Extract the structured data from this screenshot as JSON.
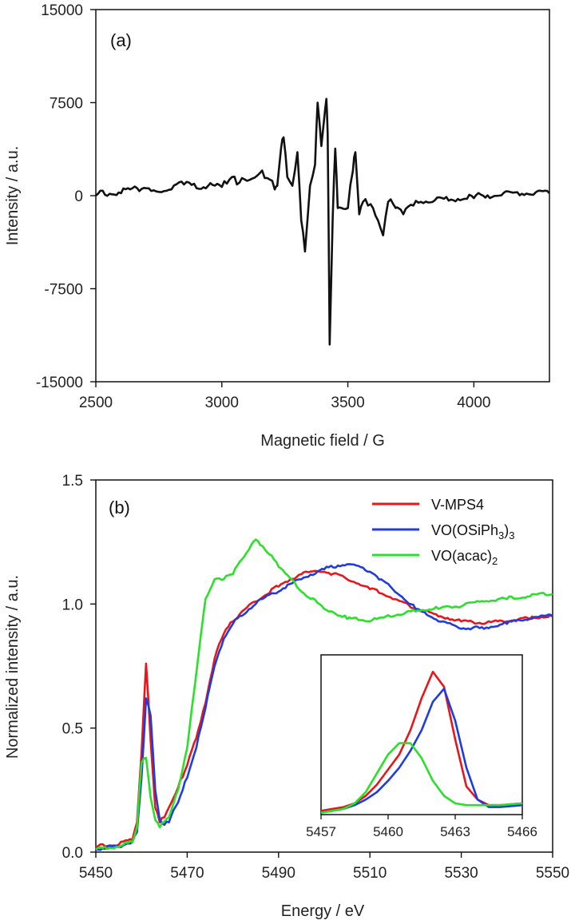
{
  "chart_data": [
    {
      "type": "line",
      "panel_label": "(a)",
      "xlabel": "Magnetic field / G",
      "ylabel": "Intensity / a.u.",
      "xlim": [
        2500,
        4300
      ],
      "ylim": [
        -15000,
        15000
      ],
      "x_ticks": [
        "2500",
        "3000",
        "3500",
        "4000"
      ],
      "y_ticks": [
        "15000",
        "7500",
        "0",
        "-7500",
        "-15000"
      ],
      "series": [
        {
          "color": "#111111",
          "x": [
            2500,
            2600,
            2700,
            2750,
            2800,
            2850,
            2900,
            3000,
            3040,
            3060,
            3100,
            3150,
            3190,
            3210,
            3220,
            3235,
            3245,
            3260,
            3280,
            3300,
            3315,
            3330,
            3350,
            3370,
            3380,
            3395,
            3405,
            3415,
            3420,
            3428,
            3440,
            3450,
            3460,
            3475,
            3500,
            3520,
            3530,
            3545,
            3560,
            3580,
            3600,
            3620,
            3640,
            3660,
            3690,
            3700,
            3720,
            3760,
            3800,
            3900,
            4000,
            4100,
            4200,
            4300
          ],
          "y": [
            0,
            200,
            600,
            300,
            500,
            900,
            600,
            700,
            1500,
            900,
            1200,
            1800,
            1300,
            500,
            800,
            3800,
            4700,
            1500,
            800,
            3500,
            -2000,
            -4500,
            800,
            2500,
            7500,
            4000,
            6000,
            7800,
            5000,
            -12000,
            -1800,
            3800,
            -1000,
            -1000,
            -1000,
            2000,
            3500,
            -1500,
            -500,
            -800,
            -1000,
            -2000,
            -3200,
            -500,
            -1000,
            -1000,
            -1500,
            -800,
            -600,
            -400,
            -200,
            0,
            50,
            200
          ]
        }
      ]
    },
    {
      "type": "line",
      "panel_label": "(b)",
      "xlabel": "Energy / eV",
      "ylabel": "Normalized intensity / a.u.",
      "xlim": [
        5450,
        5550
      ],
      "ylim": [
        0.0,
        1.5
      ],
      "x_ticks": [
        "5450",
        "5470",
        "5490",
        "5510",
        "5530",
        "5550"
      ],
      "y_ticks": [
        "0.0",
        "0.5",
        "1.0",
        "1.5"
      ],
      "legend_position": "top-right",
      "series": [
        {
          "name": "V-MPS4",
          "name_sub": "",
          "color": "#e8161b",
          "x": [
            5450,
            5455,
            5458,
            5459,
            5460,
            5461,
            5462,
            5463,
            5464,
            5465,
            5466,
            5468,
            5470,
            5472,
            5474,
            5476,
            5478,
            5480,
            5485,
            5490,
            5495,
            5500,
            5505,
            5510,
            5515,
            5520,
            5525,
            5530,
            5535,
            5540,
            5545,
            5550
          ],
          "y": [
            0.02,
            0.03,
            0.05,
            0.12,
            0.4,
            0.76,
            0.45,
            0.18,
            0.12,
            0.14,
            0.18,
            0.26,
            0.35,
            0.46,
            0.6,
            0.78,
            0.88,
            0.93,
            1.01,
            1.07,
            1.12,
            1.13,
            1.1,
            1.06,
            1.02,
            0.98,
            0.95,
            0.93,
            0.92,
            0.93,
            0.94,
            0.95
          ]
        },
        {
          "name": "VO(OSiPh",
          "name_sub": "3",
          "name_after": ")",
          "name_sub2": "3",
          "color": "#1f3ce0",
          "x": [
            5450,
            5455,
            5458,
            5459,
            5460,
            5461,
            5462,
            5463,
            5464,
            5465,
            5466,
            5468,
            5470,
            5472,
            5474,
            5476,
            5478,
            5480,
            5485,
            5490,
            5495,
            5500,
            5505,
            5510,
            5515,
            5520,
            5525,
            5530,
            5535,
            5540,
            5545,
            5550
          ],
          "y": [
            0.01,
            0.02,
            0.04,
            0.08,
            0.3,
            0.62,
            0.55,
            0.25,
            0.13,
            0.11,
            0.12,
            0.2,
            0.3,
            0.42,
            0.58,
            0.75,
            0.86,
            0.92,
            1.0,
            1.05,
            1.1,
            1.14,
            1.16,
            1.13,
            1.06,
            0.98,
            0.93,
            0.9,
            0.9,
            0.92,
            0.94,
            0.95
          ]
        },
        {
          "name": "VO(acac)",
          "name_sub": "2",
          "color": "#2ae02a",
          "x": [
            5450,
            5455,
            5458,
            5459,
            5460,
            5461,
            5462,
            5463,
            5464,
            5466,
            5468,
            5470,
            5472,
            5474,
            5476,
            5478,
            5480,
            5482,
            5485,
            5488,
            5490,
            5495,
            5500,
            5505,
            5510,
            5515,
            5520,
            5525,
            5530,
            5535,
            5540,
            5545,
            5550
          ],
          "y": [
            0.01,
            0.02,
            0.04,
            0.1,
            0.36,
            0.38,
            0.22,
            0.13,
            0.1,
            0.14,
            0.25,
            0.42,
            0.72,
            1.02,
            1.1,
            1.1,
            1.12,
            1.18,
            1.26,
            1.2,
            1.15,
            1.05,
            0.98,
            0.94,
            0.93,
            0.95,
            0.97,
            0.98,
            0.99,
            1.01,
            1.02,
            1.03,
            1.04
          ]
        }
      ]
    },
    {
      "type": "line",
      "panel_label": "",
      "xlabel": "",
      "ylabel": "",
      "xlim": [
        5457,
        5466
      ],
      "x_ticks": [
        "5457",
        "5460",
        "5463",
        "5466"
      ],
      "series": [
        {
          "color": "#e8161b",
          "x": [
            5457,
            5457.5,
            5458,
            5458.5,
            5459,
            5459.5,
            5460,
            5460.5,
            5461,
            5461.5,
            5462,
            5462.5,
            5463,
            5463.5,
            5464,
            5464.5,
            5465,
            5466
          ],
          "y": [
            0.02,
            0.03,
            0.04,
            0.06,
            0.1,
            0.16,
            0.24,
            0.32,
            0.45,
            0.62,
            0.76,
            0.68,
            0.4,
            0.15,
            0.08,
            0.05,
            0.05,
            0.06
          ]
        },
        {
          "color": "#1f3ce0",
          "x": [
            5457,
            5457.5,
            5458,
            5458.5,
            5459,
            5459.5,
            5460,
            5460.5,
            5461,
            5461.5,
            5462,
            5462.5,
            5463,
            5463.5,
            5464,
            5464.5,
            5465,
            5466
          ],
          "y": [
            0.01,
            0.02,
            0.03,
            0.05,
            0.08,
            0.12,
            0.18,
            0.25,
            0.34,
            0.45,
            0.6,
            0.67,
            0.5,
            0.25,
            0.08,
            0.04,
            0.04,
            0.05
          ]
        },
        {
          "color": "#2ae02a",
          "x": [
            5457,
            5457.5,
            5458,
            5458.5,
            5459,
            5459.5,
            5460,
            5460.5,
            5461,
            5461.5,
            5462,
            5462.5,
            5463,
            5463.5,
            5464,
            5464.5,
            5465,
            5466
          ],
          "y": [
            0.01,
            0.02,
            0.03,
            0.06,
            0.12,
            0.22,
            0.32,
            0.38,
            0.38,
            0.3,
            0.18,
            0.1,
            0.06,
            0.05,
            0.05,
            0.05,
            0.05,
            0.06
          ]
        }
      ]
    }
  ]
}
